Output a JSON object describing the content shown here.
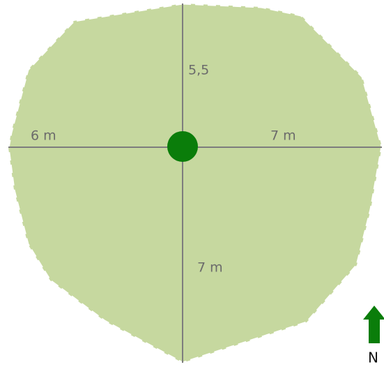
{
  "labels": {
    "north": "5,5",
    "west": "6 m",
    "east": "7 m",
    "south": "7 m"
  },
  "compass": "N"
}
